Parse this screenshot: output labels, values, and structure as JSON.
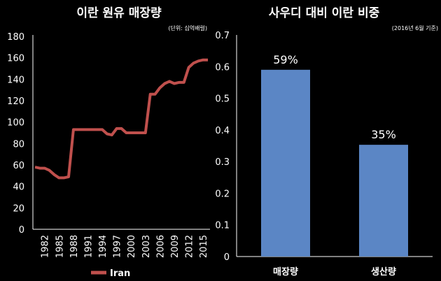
{
  "chart_data": [
    {
      "type": "line",
      "title": "이란 원유 매장량",
      "subtitle": "(단위: 십억배럴)",
      "ylim": [
        0,
        180
      ],
      "yticks": [
        0,
        20,
        40,
        60,
        80,
        100,
        120,
        140,
        160,
        180
      ],
      "xticks": [
        1982,
        1985,
        1988,
        1991,
        1994,
        1997,
        2000,
        2003,
        2006,
        2009,
        2012,
        2015
      ],
      "xlim": [
        1980,
        2016
      ],
      "grid": false,
      "legend": "bottom",
      "color": "#c0504d",
      "series": [
        {
          "name": "Iran",
          "x": [
            1980,
            1981,
            1982,
            1983,
            1984,
            1985,
            1986,
            1987,
            1988,
            1989,
            1990,
            1991,
            1992,
            1993,
            1994,
            1995,
            1996,
            1997,
            1998,
            1999,
            2000,
            2001,
            2002,
            2003,
            2004,
            2005,
            2006,
            2007,
            2008,
            2009,
            2010,
            2011,
            2012,
            2013,
            2014,
            2015,
            2016
          ],
          "values": [
            58,
            57,
            57,
            55,
            51,
            48,
            48,
            49,
            93,
            93,
            93,
            93,
            93,
            93,
            93,
            89,
            88,
            94,
            94,
            90,
            90,
            90,
            90,
            90,
            126,
            126,
            132,
            136,
            138,
            136,
            137,
            137,
            151,
            155,
            157,
            158,
            158
          ]
        }
      ]
    },
    {
      "type": "bar",
      "title": "사우디 대비 이란 비중",
      "subtitle": "(2016년 6월 기준)",
      "ylim": [
        0,
        0.7
      ],
      "yticks": [
        0,
        0.1,
        0.2,
        0.3,
        0.4,
        0.5,
        0.6,
        0.7
      ],
      "categories": [
        "매장량",
        "생산량"
      ],
      "values": [
        0.59,
        0.353
      ],
      "data_labels": [
        "59%",
        "35%"
      ],
      "grid": false,
      "color": "#5b86c5"
    }
  ]
}
